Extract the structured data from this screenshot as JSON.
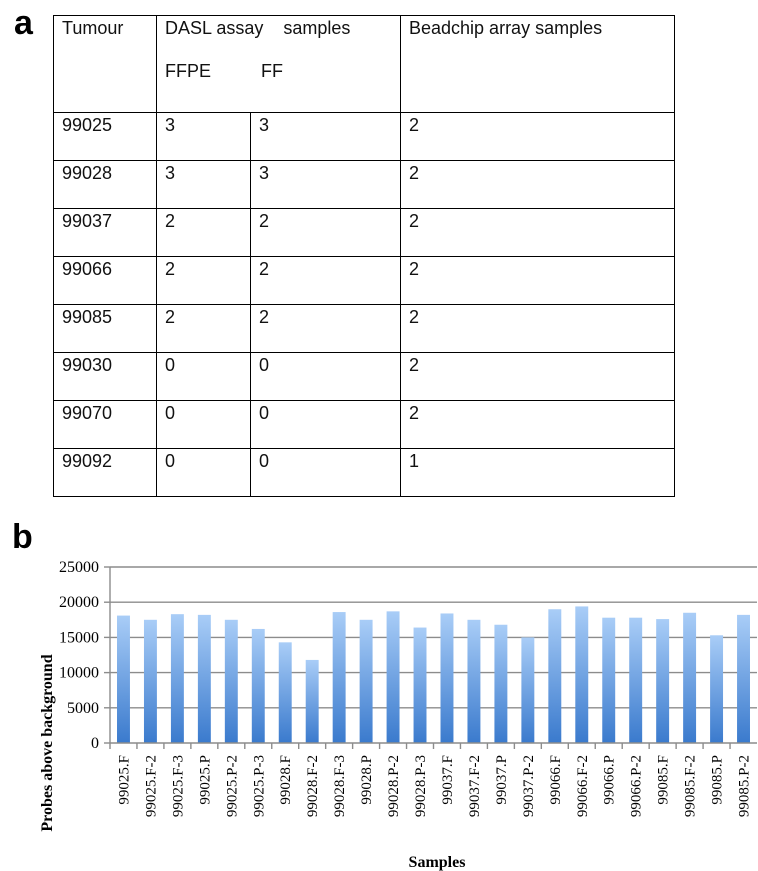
{
  "panel_a": {
    "letter": "a",
    "header": {
      "tumour": "Tumour",
      "dasl": "DASL assay    samples",
      "ffpe": "FFPE",
      "ff": "FF",
      "beadchip": "Beadchip array samples"
    },
    "rows": [
      [
        "99025",
        "3",
        "3",
        "2"
      ],
      [
        "99028",
        "3",
        "3",
        "2"
      ],
      [
        "99037",
        "2",
        "2",
        "2"
      ],
      [
        "99066",
        "2",
        "2",
        "2"
      ],
      [
        "99085",
        "2",
        "2",
        "2"
      ],
      [
        "99030",
        "0",
        "0",
        "2"
      ],
      [
        "99070",
        "0",
        "0",
        "2"
      ],
      [
        "99092",
        "0",
        "0",
        "1"
      ]
    ]
  },
  "panel_b": {
    "letter": "b"
  },
  "chart_data": {
    "type": "bar",
    "xlabel": "Samples",
    "ylabel": "Probes above background",
    "ylim": [
      0,
      25000
    ],
    "yticks": [
      0,
      5000,
      10000,
      15000,
      20000,
      25000
    ],
    "ytick_labels": [
      "0",
      "5000",
      "10000",
      "15000",
      "20000",
      "25000"
    ],
    "grid": true,
    "categories": [
      "99025.F",
      "99025.F-2",
      "99025.F-3",
      "99025.P",
      "99025.P-2",
      "99025.P-3",
      "99028.F",
      "99028.F-2",
      "99028.F-3",
      "99028.P",
      "99028.P-2",
      "99028.P-3",
      "99037.F",
      "99037.F-2",
      "99037.P",
      "99037.P-2",
      "99066.F",
      "99066.F-2",
      "99066.P",
      "99066.P-2",
      "99085.F",
      "99085.F-2",
      "99085.P",
      "99085.P-2"
    ],
    "values": [
      18100,
      17500,
      18300,
      18200,
      17500,
      16200,
      14300,
      11800,
      18600,
      17500,
      18700,
      16400,
      18400,
      17500,
      16800,
      15000,
      19000,
      19400,
      17800,
      17800,
      17600,
      18500,
      15300,
      18200
    ],
    "colors": {
      "bar_top": "#a9cdf7",
      "bar_bottom": "#3a7acd",
      "grid": "#8c8c8c",
      "axis": "#8c8c8c"
    }
  }
}
